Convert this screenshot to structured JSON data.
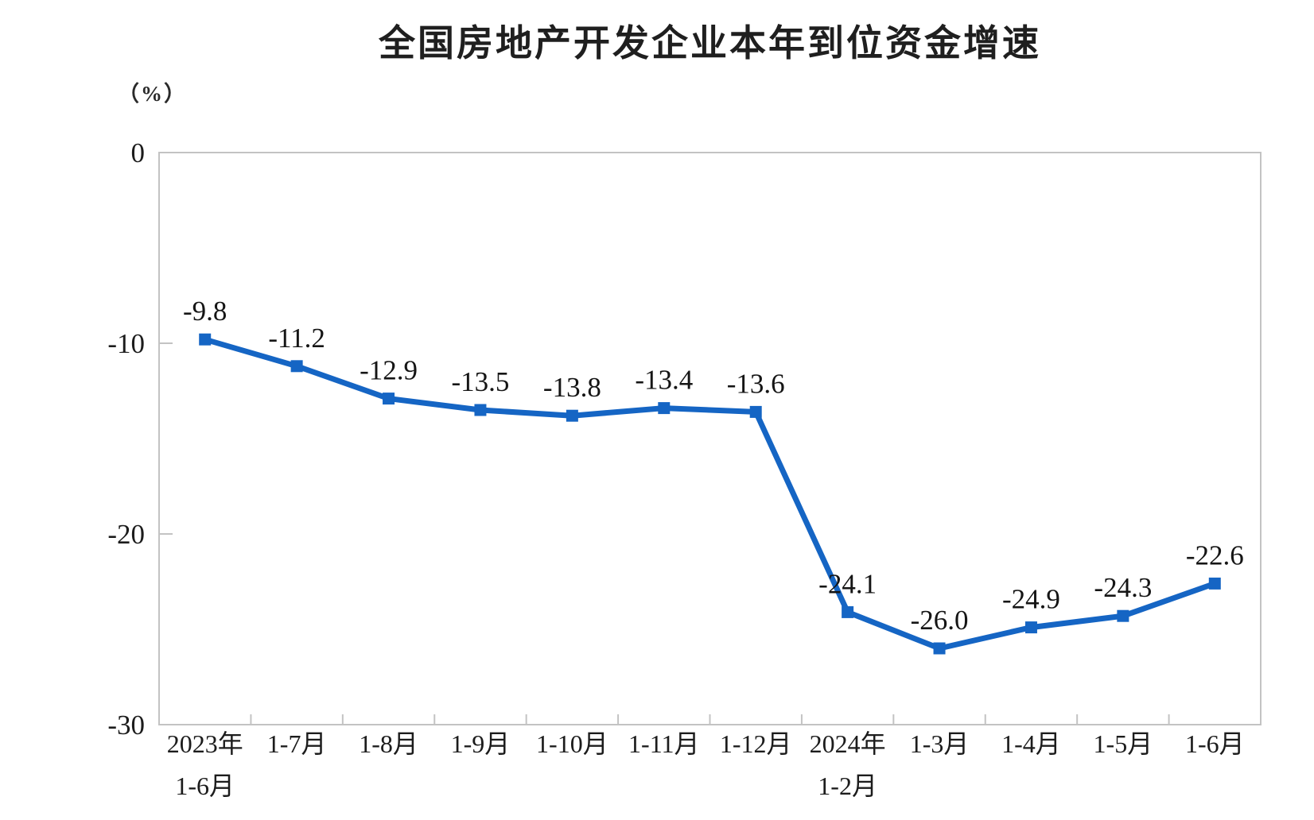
{
  "chart": {
    "title": "全国房地产开发企业本年到位资金增速",
    "unit_label": "（%）"
  },
  "chart_data": {
    "type": "line",
    "title": "全国房地产开发企业本年到位资金增速",
    "ylabel_unit": "（%）",
    "categories": [
      "2023年\n1-6月",
      "1-7月",
      "1-8月",
      "1-9月",
      "1-10月",
      "1-11月",
      "1-12月",
      "2024年\n1-2月",
      "1-3月",
      "1-4月",
      "1-5月",
      "1-6月"
    ],
    "values": [
      -9.8,
      -11.2,
      -12.9,
      -13.5,
      -13.8,
      -13.4,
      -13.6,
      -24.1,
      -26.0,
      -24.9,
      -24.3,
      -22.6
    ],
    "ylim": [
      -30,
      0
    ],
    "yticks": [
      0,
      -10,
      -20,
      -30
    ],
    "grid": false,
    "legend": "none",
    "data_labels": true,
    "marker": "square",
    "line_color": "#1565C4",
    "axis_color": "#c3c3c3",
    "text_color": "#1c1c1c"
  }
}
